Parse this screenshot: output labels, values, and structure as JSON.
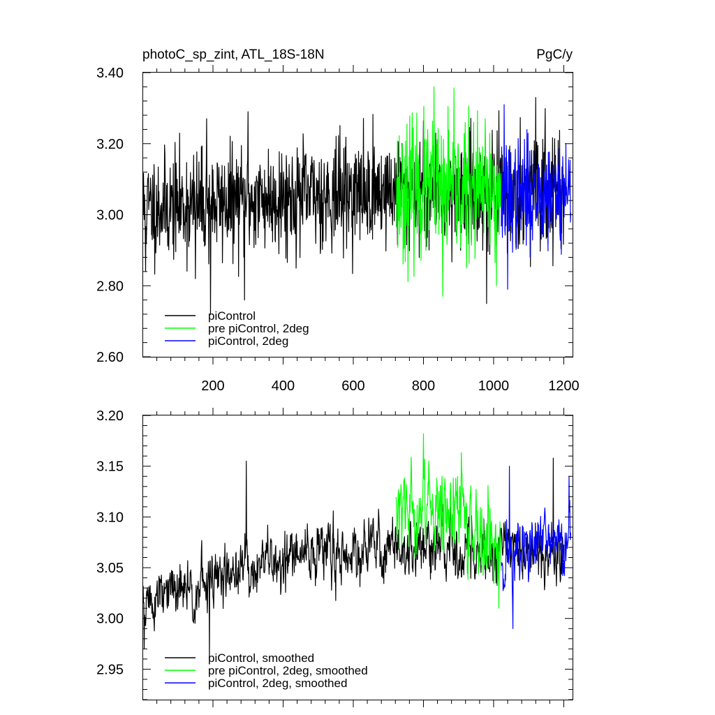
{
  "chart_data": [
    {
      "type": "line",
      "title_left": "photoC_sp_zint, ATL_18S-18N",
      "title_right": "PgC/y",
      "xlabel": "",
      "ylabel": "",
      "xlim": [
        1,
        1225
      ],
      "ylim": [
        2.6,
        3.4
      ],
      "x_ticks": [
        200,
        400,
        600,
        800,
        1000,
        1200
      ],
      "x_tick_labels": [
        "200",
        "400",
        "600",
        "800",
        "1000",
        "1200"
      ],
      "y_ticks": [
        2.6,
        2.8,
        3.0,
        3.2,
        3.4
      ],
      "y_tick_labels": [
        "2.60",
        "2.80",
        "3.00",
        "3.20",
        "3.40"
      ],
      "legend_position": "bottom-left",
      "series": [
        {
          "name": "piControl",
          "color": "#000000",
          "x_range": [
            1,
            1200
          ],
          "mean_segments": [
            [
              1,
              3.02
            ],
            [
              200,
              3.03
            ],
            [
              400,
              3.05
            ],
            [
              600,
              3.06
            ],
            [
              720,
              3.07
            ],
            [
              1000,
              3.06
            ],
            [
              1200,
              3.07
            ]
          ],
          "noise_sd": 0.075,
          "seed": 11,
          "spikes": [
            [
              8,
              2.84
            ],
            [
              150,
              2.82
            ],
            [
              193,
              2.72
            ],
            [
              290,
              2.76
            ],
            [
              980,
              2.75
            ],
            [
              182,
              3.27
            ],
            [
              300,
              3.29
            ],
            [
              1120,
              3.33
            ]
          ]
        },
        {
          "name": "pre piControl, 2deg",
          "color": "#00ff00",
          "x_range": [
            722,
            1022
          ],
          "mean_segments": [
            [
              722,
              3.07
            ],
            [
              1022,
              3.06
            ]
          ],
          "noise_sd": 0.095,
          "seed": 23,
          "spikes": [
            [
              855,
              2.77
            ],
            [
              830,
              3.36
            ],
            [
              1008,
              2.8
            ]
          ]
        },
        {
          "name": "piControl, 2deg",
          "color": "#0000ff",
          "x_range": [
            1022,
            1220
          ],
          "mean_segments": [
            [
              1022,
              3.05
            ],
            [
              1220,
              3.07
            ]
          ],
          "noise_sd": 0.075,
          "seed": 37,
          "spikes": [
            [
              1040,
              2.79
            ],
            [
              1030,
              3.31
            ]
          ]
        }
      ]
    },
    {
      "type": "line",
      "xlabel": "",
      "ylabel": "",
      "xlim": [
        1,
        1225
      ],
      "ylim": [
        2.92,
        3.2
      ],
      "x_ticks": [
        200,
        400,
        600,
        800,
        1000,
        1200
      ],
      "y_ticks": [
        2.95,
        3.0,
        3.05,
        3.1,
        3.15,
        3.2
      ],
      "y_tick_labels": [
        "2.95",
        "3.00",
        "3.05",
        "3.10",
        "3.15",
        "3.20"
      ],
      "legend_position": "bottom-left",
      "series": [
        {
          "name": "piControl, smoothed",
          "color": "#000000",
          "x_range": [
            1,
            1200
          ],
          "mean_segments": [
            [
              1,
              3.015
            ],
            [
              150,
              3.03
            ],
            [
              300,
              3.05
            ],
            [
              500,
              3.065
            ],
            [
              720,
              3.07
            ],
            [
              1200,
              3.065
            ]
          ],
          "noise_sd": 0.028,
          "seed": 51,
          "spikes": [
            [
              190,
              2.96
            ],
            [
              295,
              3.155
            ],
            [
              1170,
              3.158
            ],
            [
              4,
              2.97
            ]
          ]
        },
        {
          "name": "pre piControl, 2deg, smoothed",
          "color": "#00ff00",
          "x_range": [
            722,
            1022
          ],
          "mean_segments": [
            [
              722,
              3.09
            ],
            [
              820,
              3.12
            ],
            [
              1022,
              3.07
            ]
          ],
          "noise_sd": 0.04,
          "seed": 63,
          "spikes": [
            [
              800,
              3.182
            ],
            [
              1015,
              3.01
            ]
          ]
        },
        {
          "name": "piControl, 2deg, smoothed",
          "color": "#0000ff",
          "x_range": [
            1022,
            1220
          ],
          "mean_segments": [
            [
              1022,
              3.06
            ],
            [
              1220,
              3.08
            ]
          ],
          "noise_sd": 0.032,
          "seed": 71,
          "spikes": [
            [
              1055,
              2.99
            ],
            [
              1045,
              3.15
            ],
            [
              1215,
              3.14
            ]
          ]
        }
      ]
    }
  ]
}
